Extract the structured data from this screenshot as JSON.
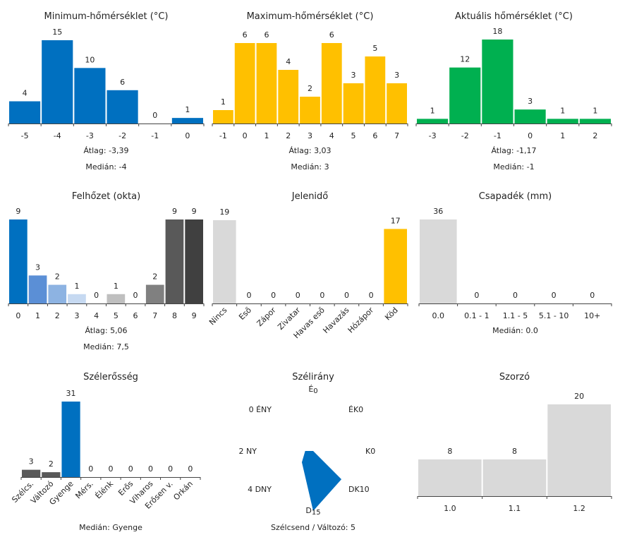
{
  "chart_data": [
    {
      "type": "bar",
      "title": "Minimum-hőmérséklet (°C)",
      "categories": [
        "-5",
        "-4",
        "-3",
        "-2",
        "-1",
        "0"
      ],
      "values": [
        4,
        15,
        10,
        6,
        0,
        1
      ],
      "colors": [
        "#0070c0"
      ],
      "stats": [
        "Átlag: -3,39",
        "Medián: -4"
      ]
    },
    {
      "type": "bar",
      "title": "Maximum-hőmérséklet (°C)",
      "categories": [
        "-1",
        "0",
        "1",
        "2",
        "3",
        "4",
        "5",
        "6",
        "7"
      ],
      "values": [
        1,
        6,
        6,
        4,
        2,
        6,
        3,
        5,
        3
      ],
      "colors": [
        "#ffc000"
      ],
      "stats": [
        "Átlag: 3,03",
        "Medián: 3"
      ]
    },
    {
      "type": "bar",
      "title": "Aktuális hőmérséklet (°C)",
      "categories": [
        "-3",
        "-2",
        "-1",
        "0",
        "1",
        "2"
      ],
      "values": [
        1,
        12,
        18,
        3,
        1,
        1
      ],
      "colors": [
        "#00b050"
      ],
      "stats": [
        "Átlag: -1,17",
        "Medián: -1"
      ]
    },
    {
      "type": "bar",
      "title": "Felhőzet (okta)",
      "categories": [
        "0",
        "1",
        "2",
        "3",
        "4",
        "5",
        "6",
        "7",
        "8",
        "9"
      ],
      "values": [
        9,
        3,
        2,
        1,
        0,
        1,
        0,
        2,
        9,
        9
      ],
      "colors": [
        "#0070c0",
        "#5b8fd6",
        "#8db3e2",
        "#c6d9f1",
        "#d9d9d9",
        "#bfbfbf",
        "#a6a6a6",
        "#808080",
        "#595959",
        "#404040"
      ],
      "stats": [
        "Átlag: 5,06",
        "Medián: 7,5"
      ]
    },
    {
      "type": "bar",
      "title": "Jelenidő",
      "categories": [
        "Nincs",
        "Eső",
        "Zápor",
        "Zivatar",
        "Havas eső",
        "Havazás",
        "Hózápor",
        "Köd"
      ],
      "values": [
        19,
        0,
        0,
        0,
        0,
        0,
        0,
        17
      ],
      "colors": [
        "#d9d9d9",
        "#d9d9d9",
        "#d9d9d9",
        "#d9d9d9",
        "#d9d9d9",
        "#d9d9d9",
        "#d9d9d9",
        "#ffc000"
      ],
      "rotated_labels": true,
      "stats": []
    },
    {
      "type": "bar",
      "title": "Csapadék (mm)",
      "categories": [
        "0.0",
        "0.1 - 1",
        "1.1 - 5",
        "5.1 - 10",
        "10+"
      ],
      "values": [
        36,
        0,
        0,
        0,
        0
      ],
      "colors": [
        "#d9d9d9"
      ],
      "stats": [
        "Medián: 0.0"
      ]
    },
    {
      "type": "bar",
      "title": "Szélerősség",
      "categories": [
        "Szélcs.",
        "Változó",
        "Gyenge",
        "Mérs.",
        "Élénk",
        "Erős",
        "Viharos",
        "Erősen v.",
        "Orkán"
      ],
      "values": [
        3,
        2,
        31,
        0,
        0,
        0,
        0,
        0,
        0
      ],
      "colors": [
        "#595959",
        "#595959",
        "#0070c0",
        "#595959",
        "#595959",
        "#595959",
        "#595959",
        "#595959",
        "#595959"
      ],
      "rotated_labels": true,
      "stats": [
        "Medián: Gyenge"
      ]
    },
    {
      "type": "radar",
      "title": "Szélirány",
      "directions": [
        "É",
        "ÉK",
        "K",
        "DK",
        "D",
        "DNY",
        "NY",
        "ÉNY"
      ],
      "values": [
        0,
        0,
        0,
        10,
        15,
        4,
        2,
        0
      ],
      "color": "#0070c0",
      "stats": [
        "Szélcsend / Változó: 5"
      ]
    },
    {
      "type": "bar",
      "title": "Szorzó",
      "categories": [
        "1.0",
        "1.1",
        "1.2"
      ],
      "values": [
        8,
        8,
        20
      ],
      "colors": [
        "#d9d9d9"
      ],
      "stats": []
    }
  ]
}
